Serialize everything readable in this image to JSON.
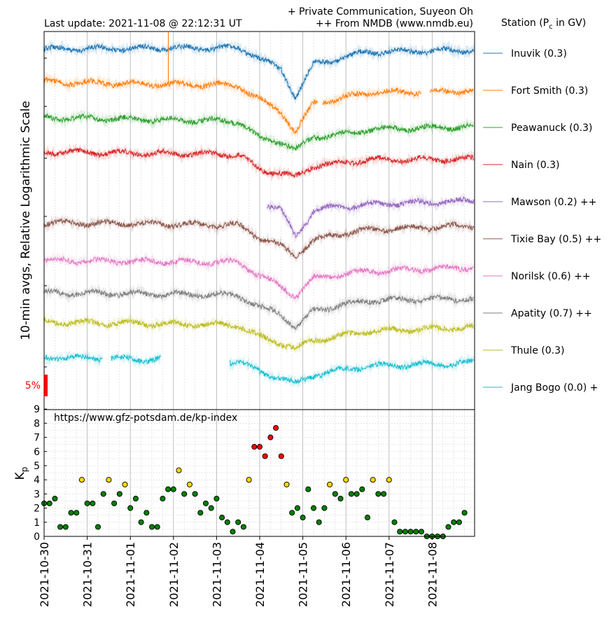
{
  "header": {
    "last_update": "Last update: 2021-11-08 @ 22:12:31 UT",
    "credit_line1": "+ Private Communication, Suyeon Oh",
    "credit_line2": "++ From NMDB (www.nmdb.eu)",
    "legend_title_prefix": "Station (P",
    "legend_title_sub": "c",
    "legend_title_suffix": " in GV)"
  },
  "chart_data": [
    {
      "type": "line",
      "ylabel": "10-min avgs, Relative Logarithmic Scale",
      "scale_bar_label": "5%",
      "scale_bar_color": "#ff0000",
      "x_range": [
        "2021-10-30",
        "2021-11-08T23:00"
      ],
      "x_ticks": [
        "2021-10-30",
        "2021-10-31",
        "2021-11-01",
        "2021-11-02",
        "2021-11-03",
        "2021-11-04",
        "2021-11-05",
        "2021-11-06",
        "2021-11-07",
        "2021-11-08"
      ],
      "grid": true,
      "legend_placement": "right",
      "series": [
        {
          "name": "Inuvik (0.3)",
          "color": "#1f77b4",
          "x": [
            "2021-10-30",
            "2021-11-03T12:00",
            "2021-11-04T00:00",
            "2021-11-04T12:00",
            "2021-11-04T20:00",
            "2021-11-05T06:00",
            "2021-11-05T18:00",
            "2021-11-06T12:00",
            "2021-11-08T23:00"
          ],
          "y": [
            0,
            0.2,
            -1.5,
            -3.5,
            -8,
            -2.5,
            -1.8,
            -0.5,
            -0.2
          ]
        },
        {
          "name": "Fort Smith (0.3)",
          "color": "#ff7f0e",
          "x": [
            "2021-10-30",
            "2021-11-03T12:00",
            "2021-11-04T00:00",
            "2021-11-04T12:00",
            "2021-11-04T20:00",
            "2021-11-05T06:00",
            "2021-11-05T18:00",
            "2021-11-06T12:00",
            "2021-11-08T23:00"
          ],
          "y": [
            0,
            -0.6,
            -3,
            -5,
            -8.5,
            -3.5,
            -3,
            -1.8,
            -1.5
          ]
        },
        {
          "name": "Peawanuck (0.3)",
          "color": "#2ca02c",
          "x": [
            "2021-10-30",
            "2021-11-03T12:00",
            "2021-11-04T00:00",
            "2021-11-04T12:00",
            "2021-11-04T20:00",
            "2021-11-05T06:00",
            "2021-11-05T18:00",
            "2021-11-06T12:00",
            "2021-11-08T23:00"
          ],
          "y": [
            0,
            -0.6,
            -3.5,
            -4,
            -5.5,
            -3.2,
            -3,
            -2,
            -1.5
          ]
        },
        {
          "name": "Nain (0.3)",
          "color": "#d62728",
          "x": [
            "2021-10-30",
            "2021-11-03T12:00",
            "2021-11-04T00:00",
            "2021-11-04T12:00",
            "2021-11-04T20:00",
            "2021-11-05T06:00",
            "2021-11-05T18:00",
            "2021-11-06T12:00",
            "2021-11-08T23:00"
          ],
          "y": [
            0,
            -0.4,
            -3,
            -3.5,
            -4.3,
            -2.3,
            -2,
            -1.3,
            -1.2
          ]
        },
        {
          "name": "Mawson (0.2) ++",
          "color": "#9467bd",
          "x": [
            "2021-11-04T04:00",
            "2021-11-04T12:00",
            "2021-11-04T20:00",
            "2021-11-05T06:00",
            "2021-11-05T18:00",
            "2021-11-06T12:00",
            "2021-11-08T23:00"
          ],
          "y": [
            0,
            -1,
            -5.5,
            -1,
            -0.5,
            0,
            0.6
          ]
        },
        {
          "name": "Tixie Bay (0.5) ++",
          "color": "#8c564b",
          "x": [
            "2021-10-30",
            "2021-11-03T12:00",
            "2021-11-04T00:00",
            "2021-11-04T12:00",
            "2021-11-04T20:00",
            "2021-11-05T06:00",
            "2021-11-05T18:00",
            "2021-11-06T12:00",
            "2021-11-08T23:00"
          ],
          "y": [
            0,
            -0.4,
            -2.5,
            -4,
            -5.5,
            -3,
            -2,
            -1.2,
            -0.5
          ]
        },
        {
          "name": "Norilsk (0.6) ++",
          "color": "#e377c2",
          "x": [
            "2021-10-30",
            "2021-11-03T12:00",
            "2021-11-04T00:00",
            "2021-11-04T12:00",
            "2021-11-04T20:00",
            "2021-11-05T06:00",
            "2021-11-05T18:00",
            "2021-11-06T12:00",
            "2021-11-08T23:00"
          ],
          "y": [
            0,
            -0.3,
            -2.5,
            -4.5,
            -6,
            -3,
            -2.5,
            -1.8,
            -1.2
          ]
        },
        {
          "name": "Apatity (0.7) ++",
          "color": "#7f7f7f",
          "x": [
            "2021-10-30",
            "2021-11-03T12:00",
            "2021-11-04T00:00",
            "2021-11-04T12:00",
            "2021-11-04T20:00",
            "2021-11-05T06:00",
            "2021-11-05T18:00",
            "2021-11-06T12:00",
            "2021-11-08T23:00"
          ],
          "y": [
            0,
            -0.4,
            -2.5,
            -3.5,
            -6,
            -3,
            -2.3,
            -1.3,
            -1
          ]
        },
        {
          "name": "Thule (0.3)",
          "color": "#bcbd22",
          "x": [
            "2021-10-30",
            "2021-11-03T12:00",
            "2021-11-04T00:00",
            "2021-11-04T12:00",
            "2021-11-04T20:00",
            "2021-11-05T06:00",
            "2021-11-05T18:00",
            "2021-11-06T12:00",
            "2021-11-08T23:00"
          ],
          "y": [
            0,
            -0.5,
            -2.5,
            -3.5,
            -4.5,
            -3,
            -2.5,
            -1.5,
            -0.9
          ]
        },
        {
          "name": "Jang Bogo (0.0) +",
          "color": "#17becf",
          "x": [
            "2021-10-30",
            "2021-11-03T12:00",
            "2021-11-04T00:00",
            "2021-11-04T12:00",
            "2021-11-04T20:00",
            "2021-11-05T06:00",
            "2021-11-05T18:00",
            "2021-11-06T12:00",
            "2021-11-08T23:00"
          ],
          "y": [
            0,
            -0.7,
            -2.5,
            -3.5,
            -4.5,
            -3,
            -2.3,
            -1.5,
            -1
          ]
        }
      ]
    },
    {
      "type": "scatter",
      "ylabel_main": "K",
      "ylabel_sub": "p",
      "annotation": "https://www.gfz-potsdam.de/kp-index",
      "ylim": [
        0,
        9
      ],
      "y_ticks": [
        0,
        1,
        2,
        3,
        4,
        5,
        6,
        7,
        8,
        9
      ],
      "x_ticks": [
        "2021-10-30",
        "2021-10-31",
        "2021-11-01",
        "2021-11-02",
        "2021-11-03",
        "2021-11-04",
        "2021-11-05",
        "2021-11-06",
        "2021-11-07",
        "2021-11-08"
      ],
      "grid": true,
      "interval_hours": 3,
      "start": "2021-10-30T00:00",
      "colors": {
        "low": "#008000",
        "moderate": "#ffd700",
        "high": "#ff0000"
      },
      "values": [
        2.33,
        2.33,
        2.67,
        0.67,
        0.67,
        1.67,
        1.67,
        4.0,
        2.33,
        2.33,
        0.67,
        3.0,
        4.0,
        2.33,
        3.0,
        3.67,
        2.0,
        2.67,
        1.0,
        1.67,
        0.67,
        0.67,
        2.67,
        3.33,
        3.33,
        4.67,
        3.0,
        3.67,
        3.0,
        1.67,
        2.33,
        2.0,
        2.67,
        1.33,
        1.0,
        0.33,
        1.0,
        0.67,
        4.0,
        6.33,
        6.33,
        5.67,
        7.0,
        7.67,
        5.67,
        3.67,
        1.67,
        2.0,
        1.33,
        3.33,
        2.0,
        1.0,
        2.0,
        3.67,
        3.0,
        2.67,
        4.0,
        3.0,
        3.0,
        3.33,
        1.33,
        4.0,
        3.0,
        3.0,
        4.0,
        1.0,
        0.33,
        0.33,
        0.33,
        0.33,
        0.33,
        0.0,
        0.0,
        0.0,
        0.0,
        0.67,
        1.0,
        1.0,
        1.67
      ]
    }
  ]
}
